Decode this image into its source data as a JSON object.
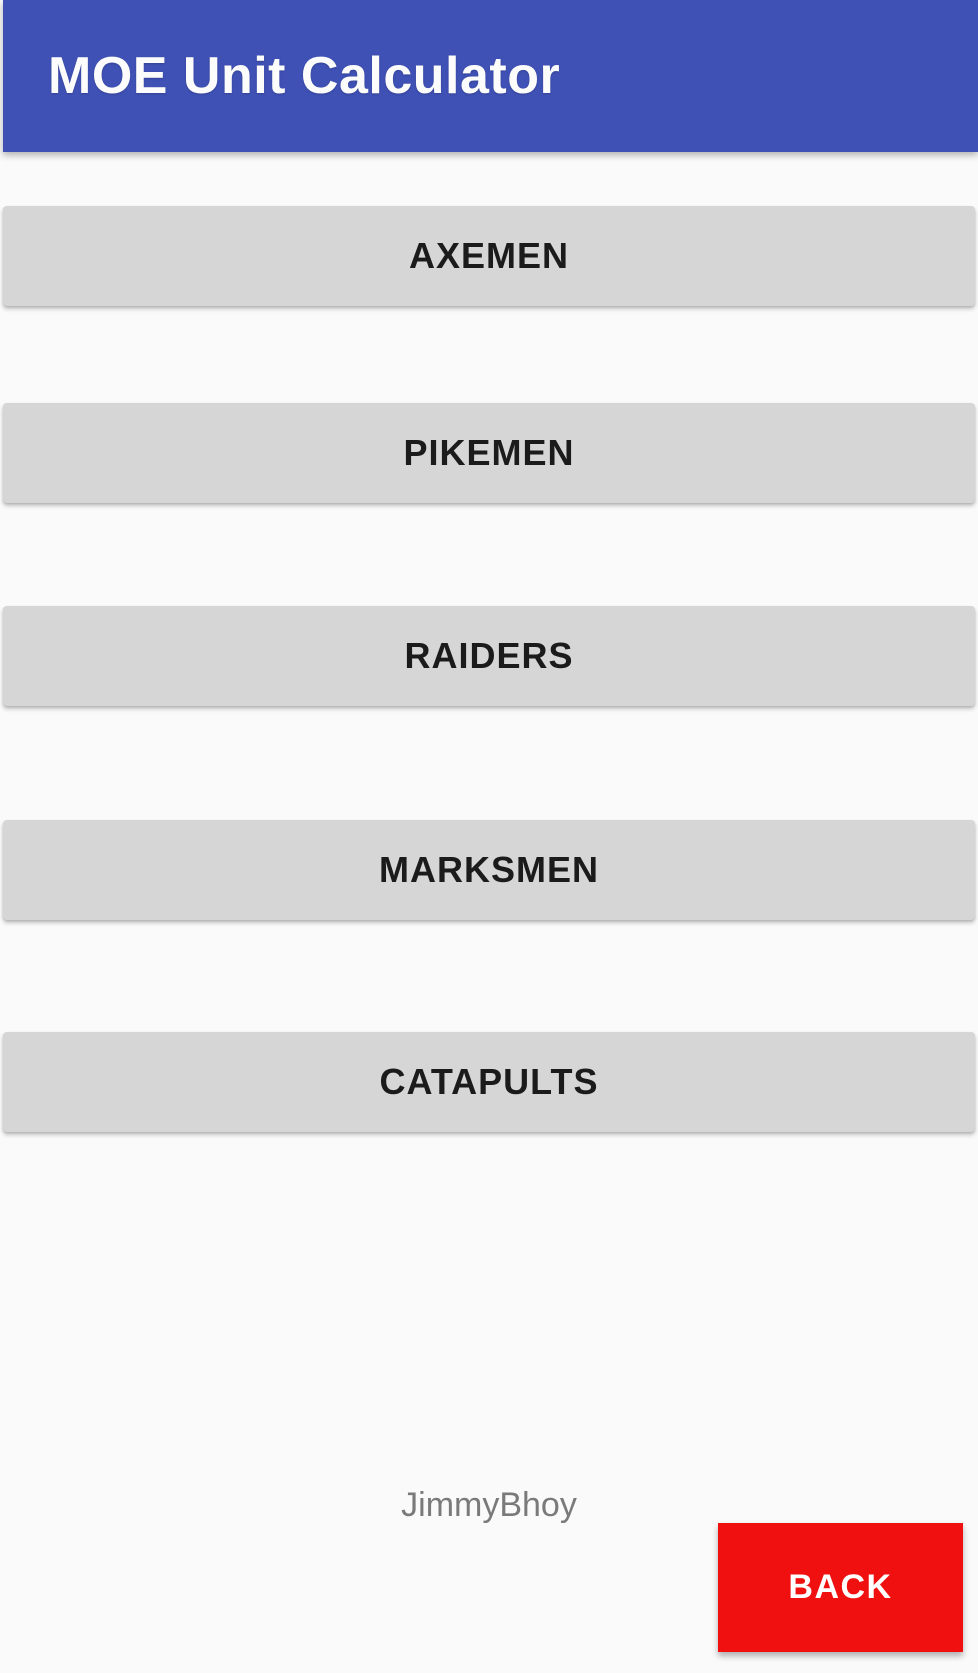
{
  "header": {
    "title": "MOE Unit Calculator"
  },
  "units": [
    {
      "label": "AXEMEN"
    },
    {
      "label": "PIKEMEN"
    },
    {
      "label": "RAIDERS"
    },
    {
      "label": "MARKSMEN"
    },
    {
      "label": "CATAPULTS"
    }
  ],
  "footer": {
    "credit": "JimmyBhoy",
    "back_label": "BACK"
  },
  "colors": {
    "app_bar": "#3F51B5",
    "app_title_text": "#FCFCFC",
    "unit_button": "#D6D6D6",
    "unit_button_text": "#1B1B1B",
    "back_button": "#F01010",
    "back_button_text": "#FFFFFF",
    "credit_text": "#7A7A7A",
    "background": "#FAFAFA"
  }
}
